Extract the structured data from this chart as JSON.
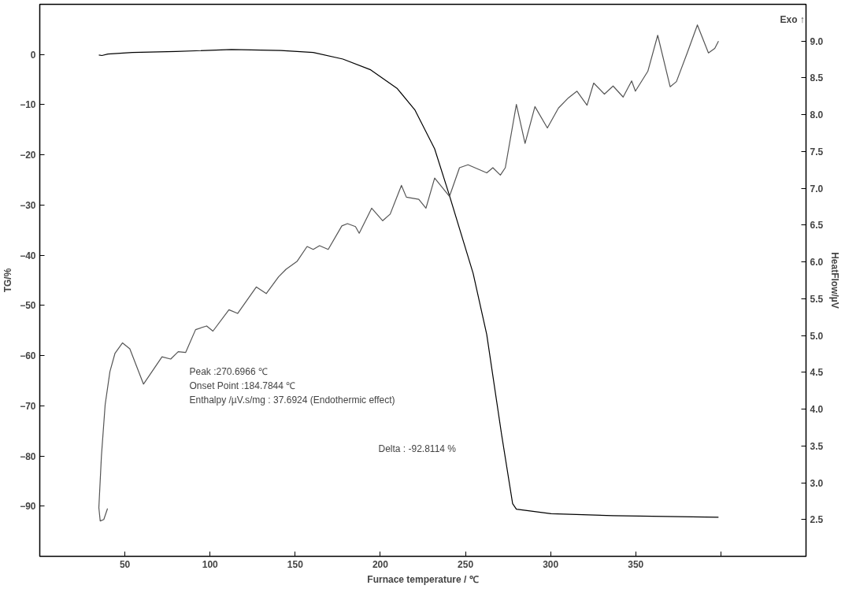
{
  "chart_data": {
    "type": "line",
    "xlabel": "Furnace temperature / ℃",
    "ylabel": "TG/%",
    "y2label": "HeatFlow/µV",
    "xlim": [
      0,
      450
    ],
    "xticks": [
      50,
      100,
      150,
      200,
      250,
      300,
      350,
      {
        "value": 400,
        "label": null
      }
    ],
    "ylim": [
      -100,
      10
    ],
    "yticks": [
      -90,
      -80,
      -70,
      -60,
      -50,
      -40,
      -30,
      -20,
      -10,
      0
    ],
    "y2lim": [
      2,
      9.5
    ],
    "y2ticks": [
      2.5,
      {
        "value": 3,
        "label": "3.0"
      },
      3.5,
      {
        "value": 4,
        "label": "4.0"
      },
      4.5,
      {
        "value": 5,
        "label": "5.0"
      },
      5.5,
      {
        "value": 6,
        "label": "6.0"
      },
      6.5,
      {
        "value": 7,
        "label": "7.0"
      },
      7.5,
      {
        "value": 8,
        "label": "8.0"
      },
      8.5,
      {
        "value": 9,
        "label": "9.0"
      }
    ],
    "grid": false,
    "line_style": "solid",
    "marker": "none",
    "series": [
      {
        "color": "#000000",
        "x": [
          34.7,
          36.5,
          40,
          54.4,
          80,
          112.6,
          141.6,
          160.6,
          178,
          194,
          210,
          220.4,
          231.9,
          240.5,
          254.5,
          262.5,
          271.2,
          277.7,
          279.9,
          300.3,
          336.7,
          398.6
        ],
        "values": [
          -0.1,
          -0.2,
          0.1,
          0.4,
          0.6,
          1.0,
          0.8,
          0.4,
          -0.9,
          -3.0,
          -6.8,
          -11.1,
          -18.8,
          -28,
          -43.6,
          -55.8,
          -75.7,
          -89.5,
          -90.6,
          -91.5,
          -91.9,
          -92.2
        ]
      },
      {
        "color": "#555555",
        "axis": "y2",
        "x": [
          39.8,
          37.6,
          35.5,
          34.7,
          36.2,
          38.4,
          41.2,
          44.2,
          48.6,
          52.9,
          60.9,
          71.8,
          76.9,
          81.3,
          85.7,
          91.5,
          98,
          101.7,
          111.1,
          116.2,
          127.2,
          133,
          140.3,
          144.6,
          151.2,
          157,
          160.6,
          164.3,
          169.4,
          177.4,
          180.7,
          185.4,
          187.6,
          194.9,
          201.4,
          205.8,
          212.4,
          215.3,
          222.6,
          226.8,
          231.9,
          240.6,
          246.5,
          251.5,
          262.5,
          266.1,
          270.5,
          273.4,
          279.9,
          285,
          290.8,
          298.1,
          304.6,
          310.5,
          315.5,
          321.4,
          325.3,
          331.6,
          336.7,
          342.6,
          347.6,
          349.8,
          357.1,
          362.9,
          370.2,
          373.9,
          380.4,
          386.2,
          392.7,
          396.4,
          398.6
        ],
        "values": [
          2.65,
          2.5,
          2.48,
          2.66,
          3.36,
          4.06,
          4.51,
          4.76,
          4.9,
          4.82,
          4.34,
          4.71,
          4.68,
          4.78,
          4.77,
          5.08,
          5.13,
          5.06,
          5.35,
          5.3,
          5.66,
          5.57,
          5.8,
          5.9,
          6.01,
          6.21,
          6.17,
          6.22,
          6.17,
          6.49,
          6.52,
          6.48,
          6.39,
          6.73,
          6.56,
          6.65,
          7.04,
          6.88,
          6.85,
          6.73,
          7.14,
          6.89,
          7.28,
          7.32,
          7.21,
          7.28,
          7.18,
          7.28,
          8.14,
          7.61,
          8.11,
          7.82,
          8.09,
          8.23,
          8.32,
          8.13,
          8.43,
          8.28,
          8.39,
          8.24,
          8.46,
          8.32,
          8.59,
          9.08,
          8.38,
          8.45,
          8.85,
          9.22,
          8.84,
          8.9,
          9.0
        ]
      }
    ],
    "annotations": [
      "Peak :270.6966 ℃",
      "Onset Point :184.7844 ℃",
      "Enthalpy /µV.s/mg : 37.6924 (Endothermic effect)",
      "Delta : -92.8114 %",
      "Exo ↑"
    ]
  }
}
